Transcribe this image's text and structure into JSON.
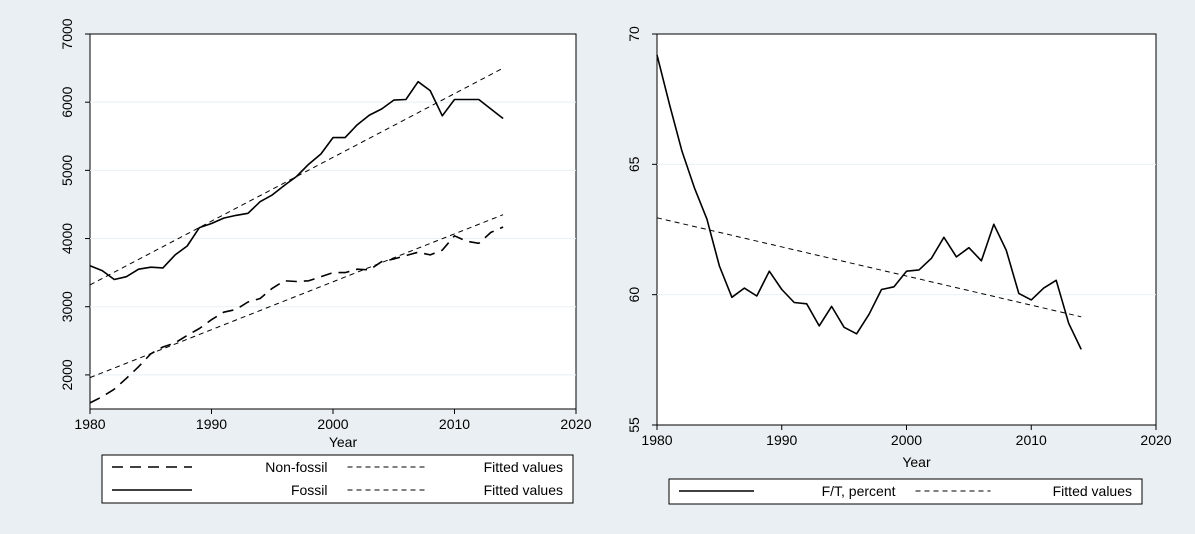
{
  "chart_data": [
    {
      "type": "line",
      "xlabel": "Year",
      "ylabel": "",
      "xlim": [
        1980,
        2020
      ],
      "ylim": [
        1500,
        7000
      ],
      "xticks": [
        1980,
        1990,
        2000,
        2010,
        2020
      ],
      "yticks": [
        2000,
        3000,
        4000,
        5000,
        6000,
        7000
      ],
      "grid": true,
      "legend_position": "bottom",
      "legend_columns": 2,
      "series": [
        {
          "name": "Non-fossil",
          "line_style": "long-dash",
          "x": [
            1980,
            1981,
            1982,
            1983,
            1984,
            1985,
            1986,
            1987,
            1988,
            1989,
            1990,
            1991,
            1992,
            1993,
            1994,
            1995,
            1996,
            1997,
            1998,
            1999,
            2000,
            2001,
            2002,
            2003,
            2004,
            2005,
            2006,
            2007,
            2008,
            2009,
            2010,
            2011,
            2012,
            2013,
            2014
          ],
          "y": [
            1590,
            1680,
            1790,
            1950,
            2120,
            2310,
            2410,
            2470,
            2580,
            2680,
            2810,
            2920,
            2960,
            3070,
            3120,
            3270,
            3380,
            3370,
            3380,
            3440,
            3500,
            3500,
            3550,
            3540,
            3660,
            3700,
            3750,
            3800,
            3760,
            3830,
            4040,
            3960,
            3930,
            4090,
            4170
          ]
        },
        {
          "name": "Fitted values",
          "line_style": "short-dash",
          "x": [
            1980,
            2014
          ],
          "y": [
            1960,
            4350
          ]
        },
        {
          "name": "Fossil",
          "line_style": "solid",
          "x": [
            1980,
            1981,
            1982,
            1983,
            1984,
            1985,
            1986,
            1987,
            1988,
            1989,
            1990,
            1991,
            1992,
            1993,
            1994,
            1995,
            1996,
            1997,
            1998,
            1999,
            2000,
            2001,
            2002,
            2003,
            2004,
            2005,
            2006,
            2007,
            2008,
            2009,
            2010,
            2011,
            2012,
            2013,
            2014
          ],
          "y": [
            3600,
            3530,
            3400,
            3440,
            3550,
            3580,
            3570,
            3760,
            3890,
            4160,
            4220,
            4300,
            4340,
            4370,
            4540,
            4640,
            4780,
            4910,
            5090,
            5240,
            5480,
            5480,
            5670,
            5810,
            5900,
            6030,
            6040,
            6300,
            6170,
            5800,
            6040,
            6040,
            6040,
            5900,
            5760
          ]
        },
        {
          "name": "Fitted values",
          "line_style": "short-dash",
          "x": [
            1980,
            2014
          ],
          "y": [
            3320,
            6500
          ]
        }
      ],
      "legend": [
        {
          "label": "Non-fossil",
          "style": "long-dash"
        },
        {
          "label": "Fitted values",
          "style": "short-dash"
        },
        {
          "label": "Fossil",
          "style": "solid"
        },
        {
          "label": "Fitted values",
          "style": "short-dash"
        }
      ]
    },
    {
      "type": "line",
      "xlabel": "Year",
      "ylabel": "",
      "xlim": [
        1980,
        2020
      ],
      "ylim": [
        55,
        70
      ],
      "xticks": [
        1980,
        1990,
        2000,
        2010,
        2020
      ],
      "yticks": [
        55,
        60,
        65,
        70
      ],
      "grid": true,
      "legend_position": "bottom",
      "legend_columns": 2,
      "series": [
        {
          "name": "F/T, percent",
          "line_style": "solid",
          "x": [
            1980,
            1981,
            1982,
            1983,
            1984,
            1985,
            1986,
            1987,
            1988,
            1989,
            1990,
            1991,
            1992,
            1993,
            1994,
            1995,
            1996,
            1997,
            1998,
            1999,
            2000,
            2001,
            2002,
            2003,
            2004,
            2005,
            2006,
            2007,
            2008,
            2009,
            2010,
            2011,
            2012,
            2013,
            2014
          ],
          "y": [
            69.2,
            67.3,
            65.5,
            64.1,
            62.9,
            61.1,
            59.9,
            60.25,
            59.95,
            60.9,
            60.2,
            59.7,
            59.65,
            58.8,
            59.55,
            58.75,
            58.5,
            59.25,
            60.2,
            60.3,
            60.9,
            60.95,
            61.4,
            62.2,
            61.45,
            61.8,
            61.3,
            62.7,
            61.7,
            60.05,
            59.8,
            60.25,
            60.55,
            58.9,
            57.9
          ]
        },
        {
          "name": "Fitted values",
          "line_style": "short-dash",
          "x": [
            1980,
            2014
          ],
          "y": [
            62.95,
            59.15
          ]
        }
      ],
      "legend": [
        {
          "label": "F/T, percent",
          "style": "solid"
        },
        {
          "label": "Fitted values",
          "style": "short-dash"
        }
      ]
    }
  ],
  "colors": {
    "background": "#e9eff2",
    "plot_area": "#ffffff",
    "gridline": "#e9eff2",
    "line": "#000000"
  }
}
